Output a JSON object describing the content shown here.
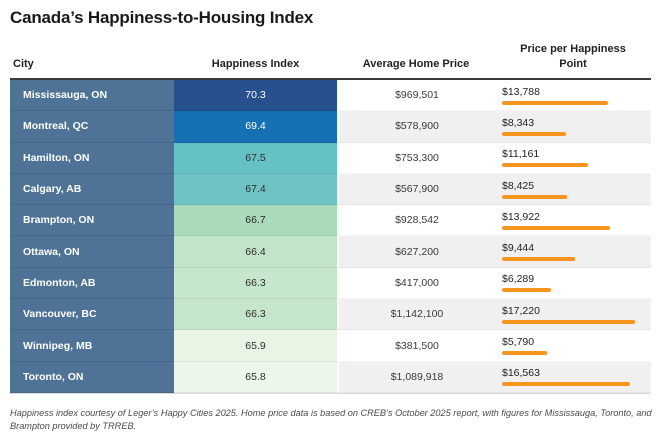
{
  "title": "Canada’s Happiness-to-Housing Index",
  "columns": {
    "city": "City",
    "happiness": "Happiness Index",
    "home_price": "Average Home Price",
    "price_per_point": "Price per Happiness Point"
  },
  "colors": {
    "city_column_bg": "#4e7396",
    "bar": "#F7941E",
    "header_rule": "#3b3b3b",
    "alt_row_bg": "#f0f0f0"
  },
  "bar": {
    "max_value": 17220
  },
  "rows": [
    {
      "city": "Mississauga, ON",
      "happiness": "70.3",
      "home_price": "$969,501",
      "price_per_point": "$13,788",
      "ppp_value": 13788,
      "index_color": "#27508f",
      "index_text_light": true
    },
    {
      "city": "Montreal, QC",
      "happiness": "69.4",
      "home_price": "$578,900",
      "price_per_point": "$8,343",
      "ppp_value": 8343,
      "index_color": "#1571b4",
      "index_text_light": true
    },
    {
      "city": "Hamilton, ON",
      "happiness": "67.5",
      "home_price": "$753,300",
      "price_per_point": "$11,161",
      "ppp_value": 11161,
      "index_color": "#66c1c7",
      "index_text_light": false
    },
    {
      "city": "Calgary, AB",
      "happiness": "67.4",
      "home_price": "$567,900",
      "price_per_point": "$8,425",
      "ppp_value": 8425,
      "index_color": "#6ec4c5",
      "index_text_light": false
    },
    {
      "city": "Brampton, ON",
      "happiness": "66.7",
      "home_price": "$928,542",
      "price_per_point": "$13,922",
      "ppp_value": 13922,
      "index_color": "#a9dab9",
      "index_text_light": false
    },
    {
      "city": "Ottawa, ON",
      "happiness": "66.4",
      "home_price": "$627,200",
      "price_per_point": "$9,444",
      "ppp_value": 9444,
      "index_color": "#c3e5c9",
      "index_text_light": false
    },
    {
      "city": "Edmonton, AB",
      "happiness": "66.3",
      "home_price": "$417,000",
      "price_per_point": "$6,289",
      "ppp_value": 6289,
      "index_color": "#c7e7cc",
      "index_text_light": false
    },
    {
      "city": "Vancouver, BC",
      "happiness": "66.3",
      "home_price": "$1,142,100",
      "price_per_point": "$17,220",
      "ppp_value": 17220,
      "index_color": "#c6e6cb",
      "index_text_light": false
    },
    {
      "city": "Winnipeg, MB",
      "happiness": "65.9",
      "home_price": "$381,500",
      "price_per_point": "$5,790",
      "ppp_value": 5790,
      "index_color": "#e8f4e4",
      "index_text_light": false
    },
    {
      "city": "Toronto, ON",
      "happiness": "65.8",
      "home_price": "$1,089,918",
      "price_per_point": "$16,563",
      "ppp_value": 16563,
      "index_color": "#ecf6ea",
      "index_text_light": false
    }
  ],
  "footnote": "Happiness index courtesy of Leger’s Happy Cities 2025. Home price data is based on CREB’s October 2025 report, with figures for Mississauga, Toronto, and Brampton provided by TRREB.",
  "chart_data": {
    "type": "table",
    "title": "Canada’s Happiness-to-Housing Index",
    "columns": [
      "City",
      "Happiness Index",
      "Average Home Price",
      "Price per Happiness Point"
    ],
    "categories": [
      "Mississauga, ON",
      "Montreal, QC",
      "Hamilton, ON",
      "Calgary, AB",
      "Brampton, ON",
      "Ottawa, ON",
      "Edmonton, AB",
      "Vancouver, BC",
      "Winnipeg, MB",
      "Toronto, ON"
    ],
    "series": [
      {
        "name": "Happiness Index",
        "values": [
          70.3,
          69.4,
          67.5,
          67.4,
          66.7,
          66.4,
          66.3,
          66.3,
          65.9,
          65.8
        ]
      },
      {
        "name": "Average Home Price",
        "values": [
          969501,
          578900,
          753300,
          567900,
          928542,
          627200,
          417000,
          1142100,
          381500,
          1089918
        ]
      },
      {
        "name": "Price per Happiness Point",
        "values": [
          13788,
          8343,
          11161,
          8425,
          13922,
          9444,
          6289,
          17220,
          5790,
          16563
        ]
      }
    ],
    "layout_hints": {
      "embedded_bar_column": "Price per Happiness Point",
      "bar_color": "#F7941E",
      "bar_range": [
        0,
        17220
      ],
      "index_color_scale": "dark blue (high) to pale green (low)"
    },
    "notes": "Happiness index courtesy of Leger’s Happy Cities 2025. Home price data is based on CREB’s October 2025 report, with figures for Mississauga, Toronto, and Brampton provided by TRREB."
  }
}
